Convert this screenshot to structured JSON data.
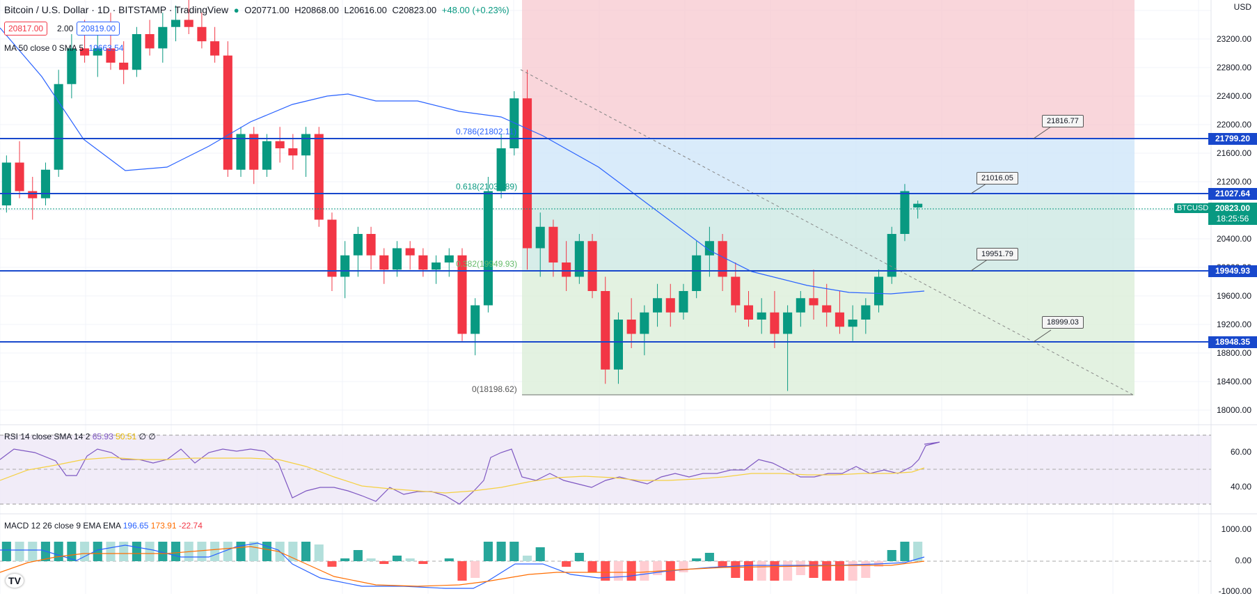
{
  "header": {
    "symbol_title": "Bitcoin / U.S. Dollar · 1D · BITSTAMP · TradingView",
    "ohlc": {
      "o": "O20771.00",
      "h": "H20868.00",
      "l": "L20616.00",
      "c": "C20823.00",
      "change": "+48.00 (+0.23%)"
    },
    "sell_price": "20817.00",
    "spread": "2.00",
    "buy_price": "20819.00",
    "ma_label": "MA 50 close 0 SMA 5",
    "ma_value": "19663.54"
  },
  "price_axis": {
    "currency": "USD",
    "ticks": [
      "23200.00",
      "22800.00",
      "22400.00",
      "22000.00",
      "21600.00",
      "21200.00",
      "20400.00",
      "20000.00",
      "19600.00",
      "19200.00",
      "18800.00",
      "18400.00",
      "18000.00"
    ]
  },
  "levels": [
    {
      "price": "21799.20",
      "color": "#1848cc"
    },
    {
      "price": "21027.64",
      "color": "#1848cc"
    },
    {
      "price": "19949.93",
      "color": "#1848cc"
    },
    {
      "price": "18948.35",
      "color": "#1848cc"
    }
  ],
  "current_price": {
    "symbol": "BTCUSD",
    "price": "20823.00",
    "countdown": "18:25:56",
    "color": "#089981"
  },
  "callouts": [
    "21816.77",
    "21016.05",
    "19951.79",
    "18999.03"
  ],
  "fib_labels": [
    "0.786(21802.11)",
    "0.618(21031.89)",
    "0.382(19949.93)",
    "0(18198.62)"
  ],
  "rsi": {
    "label": "RSI 14 close SMA 14 2",
    "v1": "65.93",
    "v2": "50.51",
    "v3": "∅ ∅",
    "ticks": [
      "60.00",
      "40.00"
    ]
  },
  "macd": {
    "label": "MACD 12 26 close 9 EMA EMA",
    "v1": "196.65",
    "v2": "173.91",
    "v3": "-22.74",
    "ticks": [
      "1000.00",
      "0.00",
      "-1000.00"
    ]
  },
  "chart_data": {
    "type": "candlestick",
    "candles": [
      [
        20800,
        21500,
        20700,
        21400
      ],
      [
        21400,
        21700,
        20900,
        21000
      ],
      [
        21000,
        21200,
        20600,
        20900
      ],
      [
        20900,
        21400,
        20800,
        21300
      ],
      [
        21300,
        22700,
        21200,
        22500
      ],
      [
        22500,
        23200,
        22300,
        23000
      ],
      [
        23000,
        23400,
        22800,
        22900
      ],
      [
        22900,
        23300,
        22600,
        23000
      ],
      [
        23000,
        23500,
        22700,
        22800
      ],
      [
        22800,
        23100,
        22500,
        22700
      ],
      [
        22700,
        23300,
        22600,
        23200
      ],
      [
        23200,
        23400,
        22900,
        23000
      ],
      [
        23000,
        23500,
        22800,
        23300
      ],
      [
        23300,
        23600,
        23100,
        23400
      ],
      [
        23400,
        23700,
        23200,
        23300
      ],
      [
        23300,
        23500,
        23000,
        23100
      ],
      [
        23100,
        23300,
        22800,
        22900
      ],
      [
        22900,
        23100,
        21200,
        21300
      ],
      [
        21300,
        21900,
        21200,
        21800
      ],
      [
        21800,
        21900,
        21100,
        21300
      ],
      [
        21300,
        21800,
        21200,
        21700
      ],
      [
        21700,
        21900,
        21400,
        21600
      ],
      [
        21600,
        21800,
        21300,
        21500
      ],
      [
        21500,
        21900,
        21200,
        21800
      ],
      [
        21800,
        21900,
        20500,
        20600
      ],
      [
        20600,
        20700,
        19600,
        19800
      ],
      [
        19800,
        20300,
        19500,
        20100
      ],
      [
        20100,
        20500,
        19800,
        20400
      ],
      [
        20400,
        20500,
        19900,
        20100
      ],
      [
        20100,
        20200,
        19700,
        19900
      ],
      [
        19900,
        20300,
        19800,
        20200
      ],
      [
        20200,
        20300,
        19900,
        20100
      ],
      [
        20100,
        20200,
        19800,
        19900
      ],
      [
        19900,
        20100,
        19700,
        20000
      ],
      [
        20000,
        20200,
        19800,
        20100
      ],
      [
        20100,
        20200,
        18900,
        19000
      ],
      [
        19000,
        19500,
        18700,
        19400
      ],
      [
        19400,
        21200,
        19300,
        21000
      ],
      [
        21000,
        21800,
        20900,
        21600
      ],
      [
        21600,
        22400,
        21500,
        22300
      ],
      [
        22300,
        22700,
        19900,
        20200
      ],
      [
        20200,
        20700,
        19800,
        20500
      ],
      [
        20500,
        20600,
        19800,
        20000
      ],
      [
        20000,
        20300,
        19600,
        19800
      ],
      [
        19800,
        20400,
        19700,
        20300
      ],
      [
        20300,
        20400,
        19500,
        19600
      ],
      [
        19600,
        19800,
        18300,
        18500
      ],
      [
        18500,
        19300,
        18300,
        19200
      ],
      [
        19200,
        19500,
        18800,
        19000
      ],
      [
        19000,
        19400,
        18700,
        19300
      ],
      [
        19300,
        19700,
        19100,
        19500
      ],
      [
        19500,
        19700,
        19100,
        19300
      ],
      [
        19300,
        19700,
        19200,
        19600
      ],
      [
        19600,
        20300,
        19500,
        20100
      ],
      [
        20100,
        20500,
        19800,
        20300
      ],
      [
        20300,
        20400,
        19600,
        19800
      ],
      [
        19800,
        20000,
        19300,
        19400
      ],
      [
        19400,
        19600,
        19100,
        19200
      ],
      [
        19200,
        19500,
        19000,
        19300
      ],
      [
        19300,
        19600,
        18800,
        19000
      ],
      [
        19000,
        19400,
        18200,
        19300
      ],
      [
        19300,
        19600,
        19100,
        19500
      ],
      [
        19500,
        19900,
        19200,
        19400
      ],
      [
        19400,
        19700,
        19100,
        19300
      ],
      [
        19300,
        19600,
        19000,
        19100
      ],
      [
        19100,
        19400,
        18900,
        19200
      ],
      [
        19200,
        19500,
        19000,
        19400
      ],
      [
        19400,
        19900,
        19300,
        19800
      ],
      [
        19800,
        20500,
        19700,
        20400
      ],
      [
        20400,
        21100,
        20300,
        21000
      ],
      [
        20771,
        20868,
        20616,
        20823
      ]
    ]
  }
}
